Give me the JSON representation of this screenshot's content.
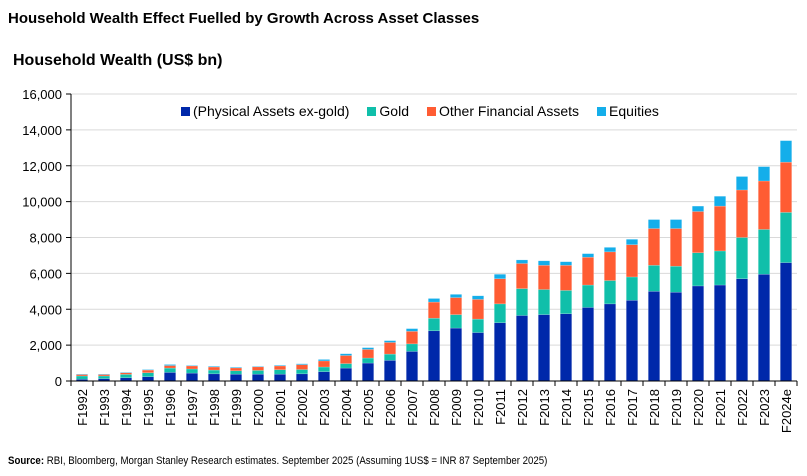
{
  "header": {
    "title": "Household Wealth Effect Fuelled by Growth Across Asset Classes",
    "subtitle": "Household Wealth (US$ bn)"
  },
  "footer": {
    "source_label": "Source:",
    "source_text": " RBI, Bloomberg, Morgan Stanley Research estimates. September 2025  (Assuming 1US$ = INR 87 September 2025)"
  },
  "colors": {
    "physical": "#0028AA",
    "gold": "#10BFAA",
    "other_financial": "#FF5C33",
    "equities": "#14AEEA",
    "grid": "#D9D9D9",
    "axis": "#000000"
  },
  "chart_data": {
    "type": "bar",
    "stacked": true,
    "title": "Household Wealth (US$ bn)",
    "xlabel": "",
    "ylabel": "",
    "ylim": [
      0,
      16000
    ],
    "yticks": [
      0,
      2000,
      4000,
      6000,
      8000,
      10000,
      12000,
      14000,
      16000
    ],
    "ytick_labels": [
      "0",
      "2,000",
      "4,000",
      "6,000",
      "8,000",
      "10,000",
      "12,000",
      "14,000",
      "16,000"
    ],
    "grid": true,
    "legend_position": "top",
    "categories": [
      "F1992",
      "F1993",
      "F1994",
      "F1995",
      "F1996",
      "F1997",
      "F1998",
      "F1999",
      "F2000",
      "F2001",
      "F2002",
      "F2003",
      "F2004",
      "F2005",
      "F2006",
      "F2007",
      "F2008",
      "F2009",
      "F2010",
      "F2011",
      "F2012",
      "F2013",
      "F2014",
      "F2015",
      "F2016",
      "F2017",
      "F2018",
      "F2019",
      "F2020",
      "F2021",
      "F2022",
      "F2023",
      "F2024e"
    ],
    "series": [
      {
        "name": "(Physical Assets ex-gold)",
        "color_key": "physical",
        "values": [
          100,
          130,
          180,
          240,
          480,
          440,
          400,
          380,
          380,
          380,
          400,
          520,
          720,
          1000,
          1150,
          1650,
          2800,
          2950,
          2700,
          3250,
          3650,
          3700,
          3750,
          4100,
          4300,
          4500,
          5000,
          4950,
          5300,
          5350,
          5700,
          5950,
          6600
        ]
      },
      {
        "name": "Gold",
        "color_key": "gold",
        "values": [
          180,
          150,
          190,
          220,
          240,
          230,
          210,
          190,
          210,
          250,
          240,
          260,
          250,
          280,
          350,
          420,
          700,
          750,
          750,
          1050,
          1500,
          1400,
          1300,
          1250,
          1300,
          1300,
          1450,
          1450,
          1850,
          1900,
          2300,
          2500,
          2800
        ]
      },
      {
        "name": "Other Financial Assets",
        "color_key": "other_financial",
        "values": [
          80,
          80,
          90,
          150,
          140,
          170,
          170,
          160,
          200,
          210,
          270,
          340,
          450,
          480,
          650,
          700,
          900,
          950,
          1100,
          1400,
          1400,
          1350,
          1400,
          1550,
          1600,
          1800,
          2050,
          2100,
          2300,
          2500,
          2650,
          2700,
          2800
        ]
      },
      {
        "name": "Equities",
        "color_key": "equities",
        "values": [
          30,
          30,
          30,
          30,
          60,
          30,
          40,
          40,
          30,
          40,
          50,
          80,
          100,
          100,
          100,
          150,
          200,
          180,
          200,
          250,
          200,
          250,
          200,
          200,
          250,
          300,
          500,
          500,
          300,
          550,
          750,
          800,
          1200
        ]
      }
    ]
  }
}
